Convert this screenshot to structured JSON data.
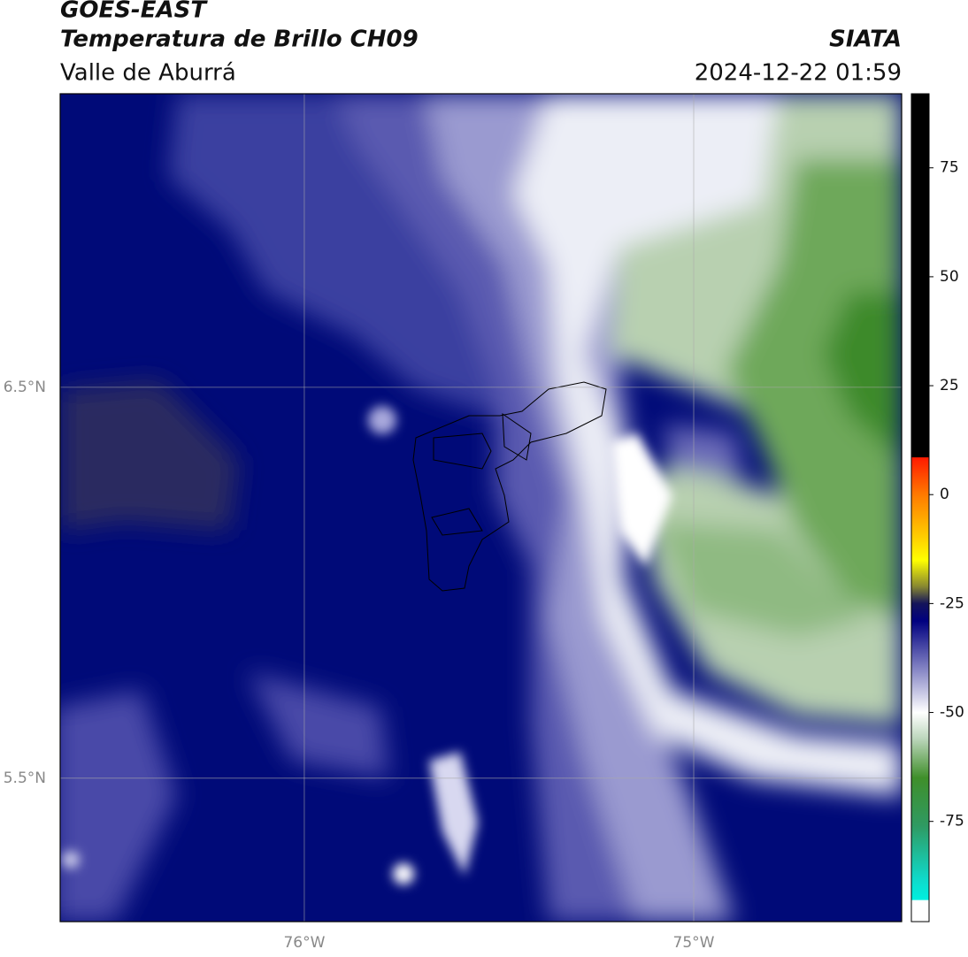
{
  "header": {
    "satellite": "GOES-EAST",
    "product": "Temperatura de Brillo CH09",
    "region": "Valle de Aburrá",
    "source": "SIATA",
    "datetime": "2024-12-22 01:59"
  },
  "map": {
    "lon_lim": [
      -76.627,
      -74.466
    ],
    "lat_lim": [
      5.133,
      7.251
    ],
    "lon_ticks": [
      {
        "value": -76,
        "label": "76°W"
      },
      {
        "value": -75,
        "label": "75°W"
      }
    ],
    "lat_ticks": [
      {
        "value": 6.5,
        "label": "6.5°N"
      },
      {
        "value": 5.5,
        "label": "5.5°N"
      }
    ]
  },
  "colorbar": {
    "lim": [
      -98,
      92
    ],
    "ticks": [
      75,
      50,
      25,
      0,
      -25,
      -50,
      -75
    ],
    "stops": [
      {
        "value": 92,
        "color": "#000000"
      },
      {
        "value": 8.6,
        "color": "#000000"
      },
      {
        "value": 8.5,
        "color": "#ff1a00"
      },
      {
        "value": 0,
        "color": "#ff7a00"
      },
      {
        "value": -10,
        "color": "#ffd000"
      },
      {
        "value": -15,
        "color": "#ffff00"
      },
      {
        "value": -21,
        "color": "#8a8a30"
      },
      {
        "value": -25,
        "color": "#14145a"
      },
      {
        "value": -29,
        "color": "#000080"
      },
      {
        "value": -40,
        "color": "#8484c4"
      },
      {
        "value": -50,
        "color": "#ffffff"
      },
      {
        "value": -56,
        "color": "#bcd6bc"
      },
      {
        "value": -65,
        "color": "#3f8f2a"
      },
      {
        "value": -76,
        "color": "#2f9a62"
      },
      {
        "value": -88,
        "color": "#10d8c8"
      },
      {
        "value": -93,
        "color": "#00f0e0"
      },
      {
        "value": -93.1,
        "color": "#ffffff"
      },
      {
        "value": -98,
        "color": "#ffffff"
      }
    ]
  }
}
